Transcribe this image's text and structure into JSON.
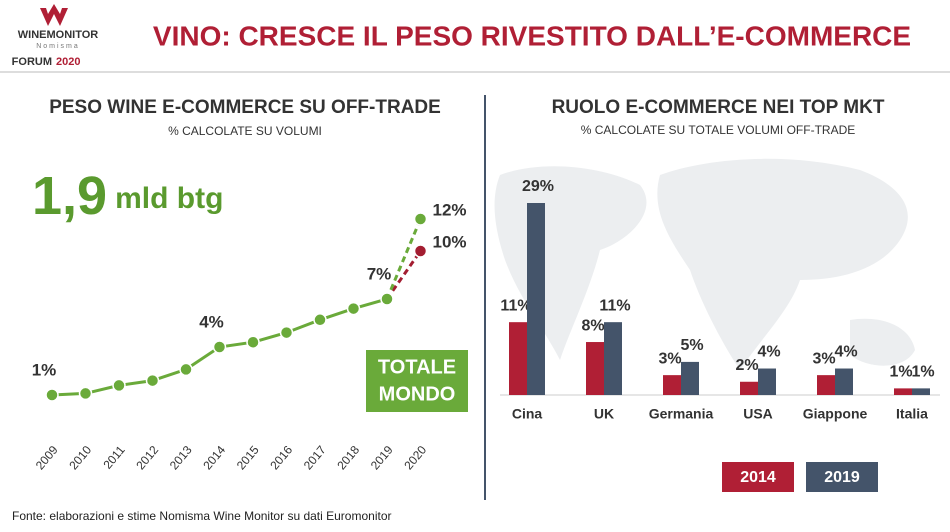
{
  "header": {
    "logo_brand": "WINEMONITOR",
    "logo_sub": "Nomisma",
    "forum": "FORUM",
    "forum_year": "2020",
    "title": "VINO: CRESCE IL PESO RIVESTITO DALL’E-COMMERCE"
  },
  "chart_data": [
    {
      "type": "line",
      "title": "PESO WINE E-COMMERCE SU OFF-TRADE",
      "subtitle": "% CALCOLATE SU VOLUMI",
      "highlight_value": "1,9",
      "highlight_unit": "mld btg",
      "badge": [
        "TOTALE",
        "MONDO"
      ],
      "categories": [
        "2009",
        "2010",
        "2011",
        "2012",
        "2013",
        "2014",
        "2015",
        "2016",
        "2017",
        "2018",
        "2019",
        "2020"
      ],
      "series": [
        {
          "color": "#6aaa3a",
          "dashed_last": true,
          "values": [
            1,
            1.1,
            1.6,
            1.9,
            2.6,
            4,
            4.3,
            4.9,
            5.7,
            6.4,
            7,
            12
          ],
          "value_labels": [
            "1%",
            null,
            null,
            null,
            null,
            "4%",
            null,
            null,
            null,
            null,
            "7%",
            "12%"
          ]
        },
        {
          "color": "#a31d31",
          "dashed_last": true,
          "values": [
            null,
            null,
            null,
            null,
            null,
            null,
            null,
            null,
            null,
            null,
            7,
            10
          ],
          "value_labels": [
            null,
            null,
            null,
            null,
            null,
            null,
            null,
            null,
            null,
            null,
            null,
            "10%"
          ]
        }
      ]
    },
    {
      "type": "bar",
      "title": "RUOLO E-COMMERCE NEI TOP MKT",
      "subtitle": "% CALCOLATE SU TOTALE VOLUMI OFF-TRADE",
      "categories": [
        "Cina",
        "UK",
        "Germania",
        "USA",
        "Giappone",
        "Italia"
      ],
      "series": [
        {
          "name": "2014",
          "color": "#b01f35",
          "values": [
            11,
            8,
            3,
            2,
            3,
            1
          ],
          "value_labels": [
            "11%",
            "8%",
            "3%",
            "2%",
            "3%",
            "1%"
          ]
        },
        {
          "name": "2019",
          "color": "#44546a",
          "values": [
            29,
            11,
            5,
            4,
            4,
            1
          ],
          "value_labels": [
            "29%",
            "11%",
            "5%",
            "4%",
            "4%",
            "1%"
          ]
        }
      ]
    }
  ],
  "source": "Fonte: elaborazioni e stime Nomisma Wine Monitor su dati Euromonitor"
}
